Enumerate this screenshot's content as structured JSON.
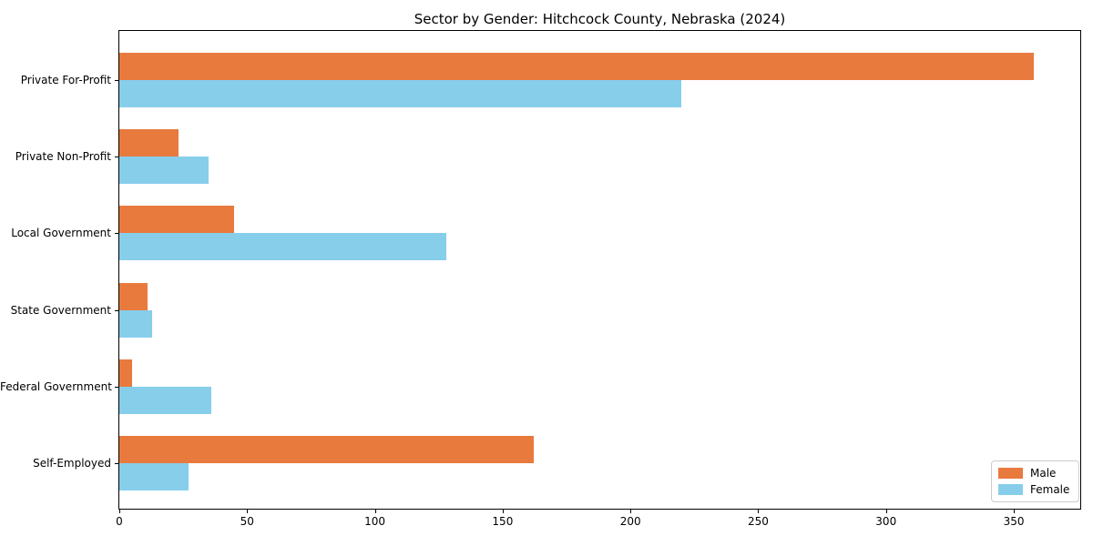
{
  "chart_data": {
    "type": "bar",
    "orientation": "horizontal",
    "title": "Sector by Gender: Hitchcock County, Nebraska (2024)",
    "categories": [
      "Private For-Profit",
      "Private Non-Profit",
      "Local Government",
      "State Government",
      "Federal Government",
      "Self-Employed"
    ],
    "series": [
      {
        "name": "Male",
        "color": "#e87a3e",
        "values": [
          358,
          23,
          45,
          11,
          5,
          162
        ]
      },
      {
        "name": "Female",
        "color": "#87ceeb",
        "values": [
          220,
          35,
          128,
          13,
          36,
          27
        ]
      }
    ],
    "xlabel": "",
    "ylabel": "",
    "xlim": [
      0,
      376
    ],
    "xticks": [
      0,
      50,
      100,
      150,
      200,
      250,
      300,
      350
    ],
    "grid": false,
    "legend": {
      "position": "lower right",
      "entries": [
        "Male",
        "Female"
      ]
    },
    "colors": {
      "male": "#e87a3e",
      "female": "#87ceeb",
      "axis": "#000000",
      "legend_border": "#cccccc",
      "background": "#ffffff"
    }
  }
}
